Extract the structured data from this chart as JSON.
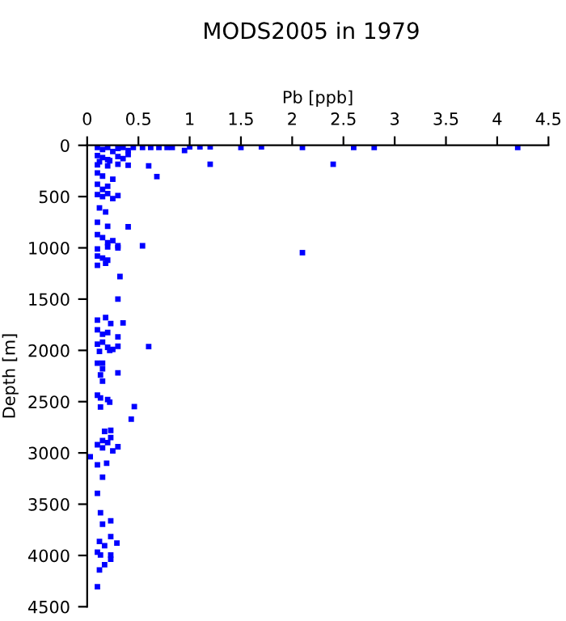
{
  "chart_data": {
    "type": "scatter",
    "title": "MODS2005 in 1979",
    "xlabel": "Pb [ppb]",
    "ylabel": "Depth [m]",
    "xlim": [
      0,
      4.5
    ],
    "xticks": [
      0,
      0.5,
      1,
      1.5,
      2,
      2.5,
      3,
      3.5,
      4,
      4.5
    ],
    "ylim": [
      4500,
      0
    ],
    "yticks": [
      0,
      500,
      1000,
      1500,
      2000,
      2500,
      3000,
      3500,
      4000,
      4500
    ],
    "grid": false,
    "marker": "square",
    "series": [
      {
        "color": "#0000ff",
        "x": [
          0.1,
          0.15,
          0.2,
          0.25,
          0.3,
          0.35,
          0.4,
          0.45,
          0.54,
          0.62,
          0.7,
          0.78,
          0.83,
          0.95,
          1.0,
          1.1,
          1.2,
          1.5,
          1.7,
          2.1,
          2.6,
          2.8,
          4.2,
          0.1,
          0.15,
          0.2,
          0.3,
          0.4,
          0.12,
          0.22,
          0.35,
          0.1,
          0.2,
          0.3,
          0.4,
          1.2,
          2.4,
          0.6,
          0.1,
          0.15,
          0.25,
          0.68,
          0.1,
          0.2,
          0.15,
          0.1,
          0.15,
          0.2,
          0.25,
          0.3,
          0.12,
          0.18,
          0.1,
          0.2,
          0.4,
          0.1,
          0.15,
          0.2,
          0.25,
          0.3,
          0.54,
          0.1,
          0.2,
          0.3,
          2.1,
          0.1,
          0.2,
          0.15,
          0.1,
          0.18,
          0.32,
          0.3,
          0.1,
          0.18,
          0.23,
          0.35,
          0.1,
          0.2,
          0.15,
          0.3,
          0.1,
          0.15,
          0.2,
          0.25,
          0.3,
          0.12,
          0.22,
          0.6,
          0.1,
          0.15,
          0.15,
          0.3,
          0.13,
          0.15,
          0.1,
          0.13,
          0.2,
          0.22,
          0.13,
          0.46,
          0.43,
          0.17,
          0.23,
          0.23,
          0.15,
          0.1,
          0.15,
          0.2,
          0.25,
          0.3,
          0.03,
          0.1,
          0.19,
          0.15,
          0.1,
          0.13,
          0.15,
          0.23,
          0.23,
          0.12,
          0.17,
          0.29,
          0.1,
          0.13,
          0.23,
          0.23,
          0.17,
          0.12,
          0.1
        ],
        "values": [
          20,
          40,
          20,
          60,
          30,
          20,
          50,
          20,
          20,
          20,
          20,
          20,
          20,
          50,
          15,
          15,
          15,
          20,
          15,
          20,
          20,
          20,
          20,
          100,
          120,
          140,
          110,
          90,
          160,
          150,
          130,
          190,
          200,
          185,
          195,
          185,
          185,
          200,
          270,
          300,
          330,
          305,
          380,
          400,
          430,
          480,
          500,
          470,
          520,
          490,
          610,
          650,
          750,
          790,
          795,
          870,
          900,
          950,
          930,
          980,
          980,
          1010,
          990,
          1000,
          1047,
          1080,
          1120,
          1100,
          1170,
          1150,
          1280,
          1500,
          1705,
          1680,
          1738,
          1733,
          1800,
          1826,
          1842,
          1868,
          1940,
          1920,
          1970,
          1990,
          1960,
          2010,
          2000,
          1963,
          2125,
          2125,
          2180,
          2220,
          2240,
          2300,
          2437,
          2463,
          2480,
          2505,
          2553,
          2548,
          2670,
          2790,
          2780,
          2850,
          2880,
          2920,
          2950,
          2900,
          2980,
          2940,
          3037,
          3116,
          3100,
          3237,
          3395,
          3584,
          3695,
          3663,
          3816,
          3863,
          3905,
          3879,
          3968,
          3995,
          3995,
          4037,
          4090,
          4142,
          4305
        ]
      }
    ]
  }
}
